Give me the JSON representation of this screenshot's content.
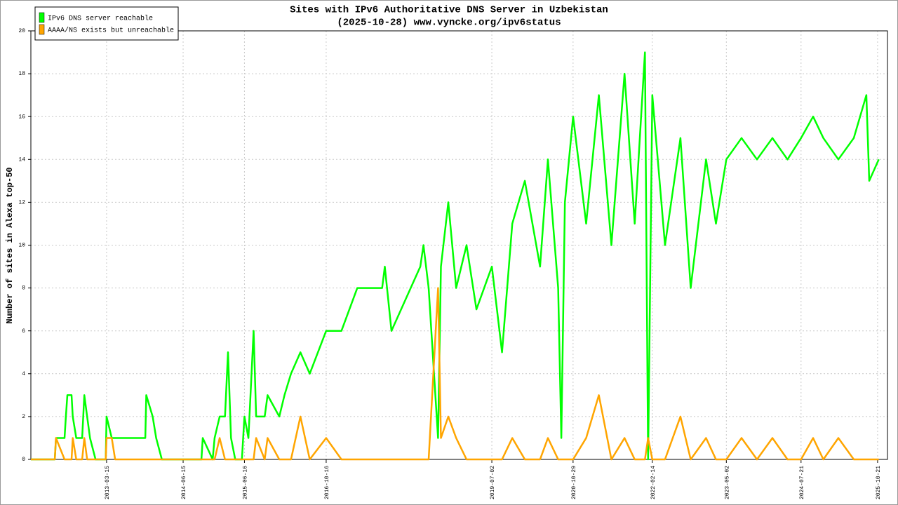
{
  "chart_data": {
    "type": "line",
    "title": "Sites with IPv6 Authoritative DNS Server in Uzbekistan",
    "subtitle": "(2025-10-28) www.vyncke.org/ipv6status",
    "y_label": "Number of sites in Alexa top-50",
    "x": [
      "2011-12-19",
      "2012-05-10",
      "2012-05-17",
      "2012-07-07",
      "2012-07-15",
      "2012-07-24",
      "2012-08-18",
      "2012-08-25",
      "2012-09-15",
      "2012-10-20",
      "2012-11-02",
      "2012-11-19",
      "2012-12-06",
      "2013-01-08",
      "2013-03-10",
      "2013-03-15",
      "2013-04-15",
      "2013-05-05",
      "2013-11-01",
      "2013-11-07",
      "2013-12-15",
      "2014-01-05",
      "2014-02-08",
      "2014-10-02",
      "2014-10-10",
      "2014-12-08",
      "2014-12-20",
      "2015-01-19",
      "2015-02-20",
      "2015-03-10",
      "2015-03-28",
      "2015-04-22",
      "2015-06-01",
      "2015-06-16",
      "2015-07-10",
      "2015-08-10",
      "2015-08-25",
      "2015-10-15",
      "2015-11-01",
      "2016-01-10",
      "2016-02-10",
      "2016-03-20",
      "2016-05-15",
      "2016-07-10",
      "2016-10-16",
      "2017-01-15",
      "2017-04-20",
      "2017-09-15",
      "2017-10-01",
      "2017-11-10",
      "2018-05-01",
      "2018-05-20",
      "2018-06-20",
      "2018-08-15",
      "2018-09-01",
      "2018-10-15",
      "2018-12-01",
      "2019-02-01",
      "2019-04-01",
      "2019-07-02",
      "2019-09-01",
      "2019-11-01",
      "2020-01-15",
      "2020-04-15",
      "2020-06-01",
      "2020-08-01",
      "2020-08-20",
      "2020-09-10",
      "2020-10-29",
      "2021-01-15",
      "2021-04-01",
      "2021-06-15",
      "2021-09-01",
      "2021-11-01",
      "2022-01-01",
      "2022-01-20",
      "2022-02-14",
      "2022-05-01",
      "2022-08-01",
      "2022-10-01",
      "2023-01-01",
      "2023-03-01",
      "2023-05-02",
      "2023-08-01",
      "2023-11-01",
      "2024-02-01",
      "2024-05-01",
      "2024-07-21",
      "2024-10-01",
      "2024-12-01",
      "2025-03-01",
      "2025-06-01",
      "2025-08-15",
      "2025-09-01",
      "2025-10-28"
    ],
    "series": [
      {
        "name": "IPv6 DNS server reachable",
        "color": "#00ff00",
        "values": [
          0,
          0,
          1,
          1,
          2,
          3,
          3,
          2,
          1,
          1,
          3,
          2,
          1,
          0,
          0,
          2,
          1,
          1,
          1,
          3,
          2,
          1,
          0,
          0,
          1,
          0,
          1,
          2,
          2,
          5,
          1,
          0,
          0,
          2,
          1,
          6,
          2,
          2,
          3,
          2,
          3,
          4,
          5,
          4,
          6,
          6,
          8,
          8,
          9,
          6,
          9,
          10,
          8,
          1,
          9,
          12,
          8,
          10,
          7,
          9,
          5,
          11,
          13,
          9,
          14,
          8,
          1,
          12,
          16,
          11,
          17,
          10,
          18,
          11,
          19,
          0,
          17,
          10,
          15,
          8,
          14,
          11,
          14,
          15,
          14,
          15,
          14,
          15,
          16,
          15,
          14,
          15,
          17,
          13,
          14
        ]
      },
      {
        "name": "AAAA/NS exists but unreachable",
        "color": "#ffa500",
        "values": [
          0,
          0,
          1,
          0,
          0,
          0,
          0,
          1,
          0,
          0,
          1,
          0,
          0,
          0,
          0,
          1,
          1,
          0,
          0,
          0,
          0,
          0,
          0,
          0,
          0,
          0,
          0,
          1,
          0,
          0,
          0,
          0,
          0,
          0,
          0,
          0,
          1,
          0,
          1,
          0,
          0,
          0,
          2,
          0,
          1,
          0,
          0,
          0,
          0,
          0,
          0,
          0,
          0,
          8,
          1,
          2,
          1,
          0,
          0,
          0,
          0,
          1,
          0,
          0,
          1,
          0,
          0,
          0,
          0,
          1,
          3,
          0,
          1,
          0,
          0,
          1,
          0,
          0,
          2,
          0,
          1,
          0,
          0,
          1,
          0,
          1,
          0,
          0,
          1,
          0,
          1,
          0,
          0,
          0,
          0
        ]
      }
    ],
    "xlim": [
      "2011-12-19",
      "2025-12-19"
    ],
    "xticks": [
      "2013-03-15",
      "2014-06-15",
      "2015-06-16",
      "2016-10-16",
      "2019-07-02",
      "2020-10-29",
      "2022-02-14",
      "2023-05-02",
      "2024-07-21",
      "2025-10-21"
    ],
    "ylim": [
      0,
      20
    ],
    "yticks": [
      0,
      2,
      4,
      6,
      8,
      10,
      12,
      14,
      16,
      18,
      20
    ],
    "grid": true,
    "legend": "upper left"
  }
}
